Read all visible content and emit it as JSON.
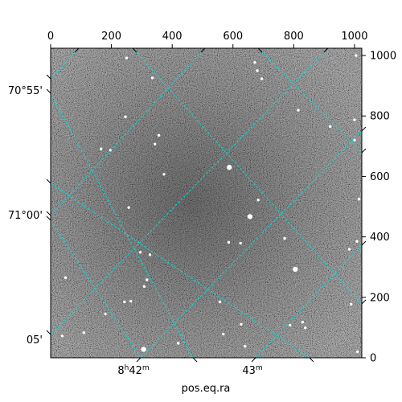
{
  "chart_data": {
    "type": "heatmap",
    "title": "",
    "xlabel": "pos.eq.ra",
    "ylabel": "",
    "pixel_axes": {
      "x_ticks": [
        0,
        200,
        400,
        600,
        800,
        1000
      ],
      "x_labels": [
        "0",
        "200",
        "400",
        "600",
        "800",
        "1000"
      ],
      "x_range": [
        0,
        1024
      ],
      "y_ticks": [
        0,
        200,
        400,
        600,
        800,
        1000
      ],
      "y_labels": [
        "0",
        "200",
        "400",
        "600",
        "800",
        "1000"
      ],
      "y_range": [
        0,
        1024
      ]
    },
    "world_axes": {
      "ra_ticks": [
        {
          "h": 8,
          "m": 42,
          "main": "8",
          "sup1": "h",
          "mid": "42",
          "sup2": "m"
        },
        {
          "h": 8,
          "m": 43,
          "main": "43",
          "sup1": "",
          "mid": "",
          "sup2": "m"
        }
      ],
      "dec_ticks": [
        {
          "value": "70°55'"
        },
        {
          "value": "71°00'"
        },
        {
          "value": "05'"
        }
      ]
    },
    "grid": true,
    "grid_color": "#00e0e0",
    "colormap": "gray",
    "stars": [
      [
        250,
        992
      ],
      [
        335,
        926
      ],
      [
        672,
        977
      ],
      [
        680,
        950
      ],
      [
        695,
        923
      ],
      [
        1005,
        1000
      ],
      [
        246,
        797
      ],
      [
        356,
        736
      ],
      [
        343,
        707
      ],
      [
        1000,
        787
      ],
      [
        920,
        765
      ],
      [
        815,
        819
      ],
      [
        1000,
        720
      ],
      [
        197,
        687
      ],
      [
        166,
        691
      ],
      [
        588,
        630
      ],
      [
        373,
        607
      ],
      [
        1015,
        525
      ],
      [
        683,
        522
      ],
      [
        257,
        497
      ],
      [
        656,
        467
      ],
      [
        586,
        382
      ],
      [
        625,
        379
      ],
      [
        327,
        341
      ],
      [
        295,
        349
      ],
      [
        805,
        293
      ],
      [
        49,
        265
      ],
      [
        317,
        258
      ],
      [
        308,
        236
      ],
      [
        264,
        187
      ],
      [
        243,
        185
      ],
      [
        557,
        185
      ],
      [
        989,
        177
      ],
      [
        38,
        72
      ],
      [
        627,
        111
      ],
      [
        788,
        108
      ],
      [
        829,
        118
      ],
      [
        838,
        99
      ],
      [
        420,
        48
      ],
      [
        640,
        38
      ],
      [
        1010,
        20
      ],
      [
        568,
        78
      ],
      [
        770,
        395
      ],
      [
        983,
        359
      ],
      [
        1008,
        385
      ],
      [
        109,
        83
      ],
      [
        180,
        145
      ]
    ],
    "bright_stars": [
      [
        588,
        630
      ],
      [
        656,
        467
      ],
      [
        805,
        293
      ],
      [
        306,
        28
      ]
    ]
  }
}
